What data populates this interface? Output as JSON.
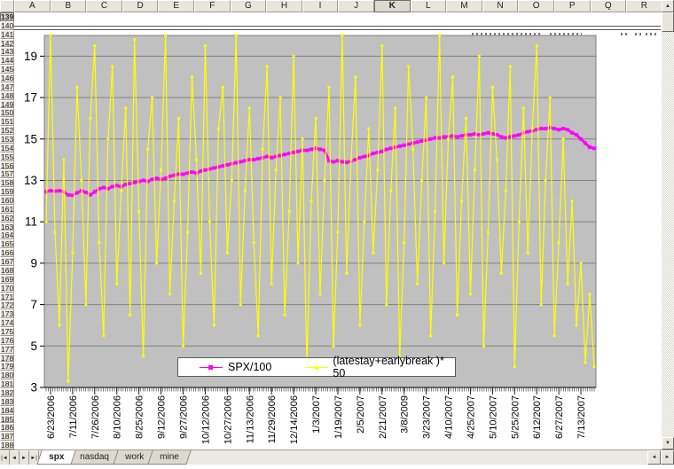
{
  "spreadsheet": {
    "column_headers": [
      "A",
      "B",
      "C",
      "D",
      "E",
      "F",
      "G",
      "H",
      "I",
      "J",
      "K",
      "L",
      "M",
      "N",
      "O",
      "P",
      "Q",
      "R"
    ],
    "active_column": "K",
    "active_row": 139,
    "rows_start": 139,
    "rows_end": 188
  },
  "sheet_tabs": {
    "active": "spx",
    "items": [
      "spx",
      "nasdaq",
      "work",
      "mine"
    ]
  },
  "icons": {
    "tab_nav": [
      "|◄",
      "◄",
      "►",
      "►|"
    ],
    "scroll_up": "▲",
    "scroll_down": "▼",
    "scroll_left": "◄",
    "scroll_right": "►"
  },
  "chart_data": {
    "type": "line",
    "title": "",
    "xlabel": "",
    "ylabel": "",
    "ylim": [
      3,
      20
    ],
    "yticks": [
      3,
      5,
      7,
      9,
      11,
      13,
      15,
      17,
      19
    ],
    "grid": true,
    "plot_bg": "#C0C0C0",
    "gridline_color": "#808080",
    "legend_position": "bottom-center",
    "x_tick_labels": [
      "6/23/2006",
      "7/11/2006",
      "7/26/2006",
      "8/10/2006",
      "8/25/2006",
      "9/12/2006",
      "9/27/2006",
      "10/12/2006",
      "10/27/2006",
      "11/13/2006",
      "11/29/2006",
      "12/14/2006",
      "1/3/2007",
      "1/19/2007",
      "2/5/2007",
      "2/21/2007",
      "3/8/2009",
      "3/23/2007",
      "4/10/2007",
      "4/25/2007",
      "5/10/2007",
      "5/25/2007",
      "6/12/2007",
      "6/27/2007",
      "7/13/2007"
    ],
    "label_start_index": 1,
    "label_every": 5,
    "series": [
      {
        "name": "SPX/100",
        "color": "#FF00FF",
        "marker": "square",
        "line_width": 3,
        "values": [
          12.45,
          12.5,
          12.48,
          12.5,
          12.45,
          12.3,
          12.28,
          12.4,
          12.5,
          12.42,
          12.3,
          12.45,
          12.6,
          12.65,
          12.6,
          12.7,
          12.75,
          12.7,
          12.8,
          12.85,
          12.9,
          12.95,
          13.0,
          12.95,
          13.05,
          13.1,
          13.05,
          13.1,
          13.2,
          13.25,
          13.3,
          13.3,
          13.35,
          13.4,
          13.35,
          13.45,
          13.5,
          13.55,
          13.6,
          13.65,
          13.7,
          13.75,
          13.8,
          13.85,
          13.9,
          13.95,
          14.0,
          14.0,
          14.05,
          14.1,
          14.15,
          14.1,
          14.15,
          14.2,
          14.25,
          14.3,
          14.35,
          14.4,
          14.45,
          14.45,
          14.5,
          14.55,
          14.5,
          14.45,
          13.95,
          13.9,
          13.95,
          13.9,
          13.87,
          13.95,
          14.0,
          14.1,
          14.15,
          14.2,
          14.3,
          14.35,
          14.4,
          14.5,
          14.55,
          14.6,
          14.65,
          14.7,
          14.75,
          14.8,
          14.85,
          14.9,
          14.95,
          15.0,
          15.05,
          15.05,
          15.1,
          15.1,
          15.15,
          15.1,
          15.15,
          15.2,
          15.2,
          15.25,
          15.2,
          15.25,
          15.3,
          15.25,
          15.2,
          15.1,
          15.05,
          15.1,
          15.15,
          15.2,
          15.3,
          15.35,
          15.4,
          15.45,
          15.5,
          15.5,
          15.55,
          15.5,
          15.45,
          15.5,
          15.45,
          15.3,
          15.2,
          15.0,
          14.8,
          14.6,
          14.55
        ]
      },
      {
        "name": "(latestay+earlybreak )* 50",
        "color": "#FFFF00",
        "marker": "square",
        "line_width": 1.2,
        "values": [
          11.0,
          20.0,
          10.5,
          6.0,
          14.0,
          3.3,
          9.5,
          17.5,
          13.0,
          7.0,
          16.0,
          19.5,
          10.0,
          5.5,
          15.0,
          18.5,
          8.0,
          12.5,
          16.5,
          6.5,
          19.8,
          11.5,
          4.5,
          14.5,
          17.0,
          9.0,
          13.5,
          20.0,
          7.5,
          12.0,
          16.0,
          5.0,
          10.5,
          18.0,
          14.0,
          8.5,
          19.5,
          11.0,
          6.0,
          15.5,
          17.5,
          9.5,
          13.0,
          20.0,
          7.0,
          12.5,
          16.5,
          10.0,
          5.5,
          14.5,
          18.5,
          8.0,
          13.5,
          17.0,
          6.5,
          11.5,
          19.0,
          9.0,
          15.0,
          4.0,
          12.0,
          16.0,
          7.5,
          13.0,
          17.5,
          5.0,
          10.5,
          20.0,
          8.5,
          14.0,
          18.0,
          6.0,
          11.0,
          15.5,
          9.5,
          13.5,
          19.5,
          7.0,
          12.5,
          16.5,
          4.5,
          10.0,
          18.5,
          14.5,
          8.0,
          13.0,
          17.0,
          5.5,
          11.5,
          20.0,
          9.0,
          15.0,
          18.0,
          6.5,
          12.0,
          16.0,
          7.5,
          13.5,
          19.0,
          5.0,
          10.5,
          17.5,
          14.0,
          8.5,
          12.5,
          18.5,
          4.0,
          11.0,
          16.5,
          9.5,
          15.5,
          19.5,
          7.0,
          13.0,
          17.0,
          5.5,
          10.0,
          15.0,
          8.0,
          12.0,
          6.0,
          9.0,
          4.2,
          7.5,
          4.0
        ]
      }
    ]
  }
}
